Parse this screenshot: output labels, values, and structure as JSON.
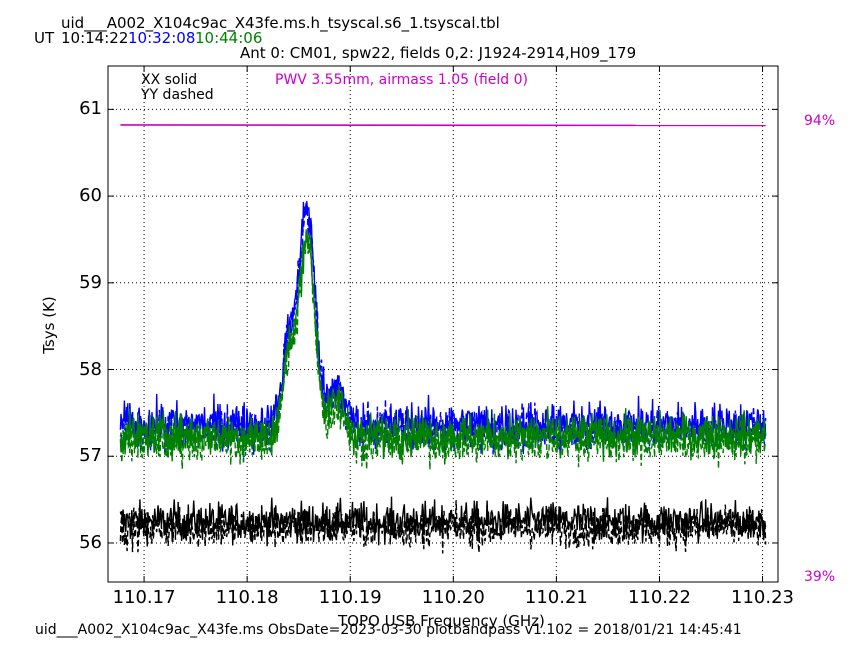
{
  "header": {
    "table_name": "uid___A002_X104c9ac_X43fe.ms.h_tsyscal.s6_1.tsyscal.tbl",
    "ut_label": "UT",
    "times": [
      {
        "text": "10:14:22",
        "color": "#000000"
      },
      {
        "text": "10:32:08",
        "color": "#0000ff"
      },
      {
        "text": "10:44:06",
        "color": "#008000"
      }
    ],
    "subtitle": "Ant 0: CM01,  spw22,  fields 0,2: J1924-2914,H09_179"
  },
  "legend": {
    "xx": "XX solid",
    "yy": "YY dashed",
    "pwv": "PWV 3.55mm, airmass 1.05 (field 0)",
    "pwv_color": "#cc00cc"
  },
  "footer": "uid___A002_X104c9ac_X43fe.ms  ObsDate=2023-03-30   plotbandpass v1.102 = 2018/01/21 14:45:41",
  "chart_data": {
    "type": "line",
    "xlabel": "TOPO USB Frequency (GHz)",
    "ylabel": "Tsys (K)",
    "xlim": [
      110.1665,
      110.2315
    ],
    "ylim": [
      55.55,
      61.5
    ],
    "xticks": [
      "110.17",
      "110.18",
      "110.19",
      "110.20",
      "110.21",
      "110.22",
      "110.23"
    ],
    "xtick_values": [
      110.17,
      110.18,
      110.19,
      110.2,
      110.21,
      110.22,
      110.23
    ],
    "yticks": [
      "56",
      "57",
      "58",
      "59",
      "60",
      "61"
    ],
    "ytick_values": [
      56,
      57,
      58,
      59,
      60,
      61
    ],
    "grid": true,
    "freq_range": [
      110.1677,
      110.2303
    ],
    "n_channels": 960,
    "atm_transmission": {
      "color": "#cc00cc",
      "top_label": "94%",
      "bottom_label": "39%",
      "level": 60.82
    },
    "series": [
      {
        "time": "10:14:22",
        "color": "#000000",
        "baseline": 56.25,
        "noise": 0.22,
        "line_peak": 0.0,
        "rise_at_edge": 0.1
      },
      {
        "time": "10:32:08",
        "color": "#0000ff",
        "baseline": 57.38,
        "noise": 0.24,
        "line_peak": 2.95,
        "rise_at_edge": 0.0
      },
      {
        "time": "10:44:06",
        "color": "#008000",
        "baseline": 57.25,
        "noise": 0.24,
        "line_peak": 2.7,
        "rise_at_edge": 0.0
      }
    ]
  }
}
